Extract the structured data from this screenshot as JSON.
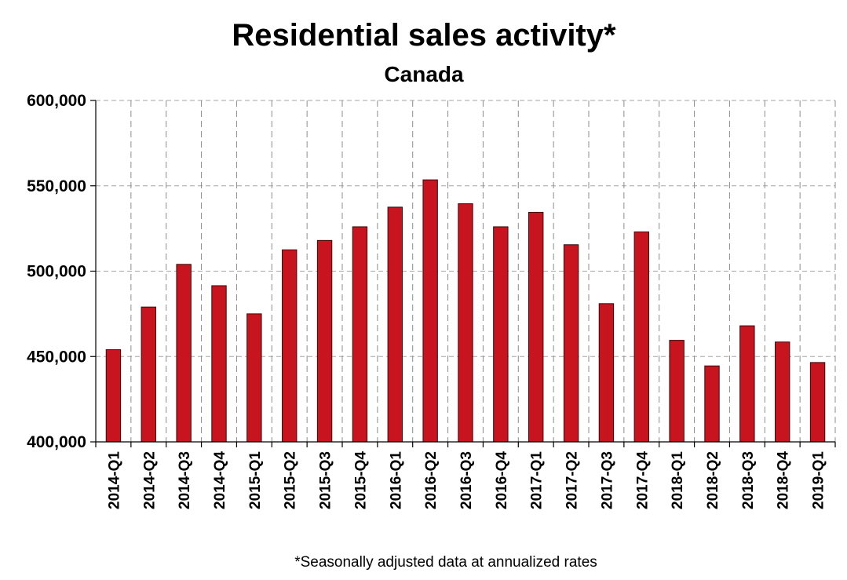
{
  "chart_data": {
    "type": "bar",
    "title": "Residential sales activity*",
    "subtitle": "Canada",
    "footnote": "*Seasonally adjusted data at annualized rates",
    "categories": [
      "2014-Q1",
      "2014-Q2",
      "2014-Q3",
      "2014-Q4",
      "2015-Q1",
      "2015-Q2",
      "2015-Q3",
      "2015-Q4",
      "2016-Q1",
      "2016-Q2",
      "2016-Q3",
      "2016-Q4",
      "2017-Q1",
      "2017-Q2",
      "2017-Q3",
      "2017-Q4",
      "2018-Q1",
      "2018-Q2",
      "2018-Q3",
      "2018-Q4",
      "2019-Q1"
    ],
    "values": [
      454000,
      479000,
      504000,
      491500,
      475000,
      512500,
      518000,
      526000,
      537500,
      553500,
      539500,
      526000,
      534500,
      515500,
      481000,
      523000,
      459500,
      444500,
      468000,
      458500,
      446500
    ],
    "ylim": [
      400000,
      600000
    ],
    "yticks": [
      400000,
      450000,
      500000,
      550000,
      600000
    ],
    "ytick_labels": [
      "400,000",
      "450,000",
      "500,000",
      "550,000",
      "600,000"
    ],
    "grid": true,
    "bar_color": "#c8141e"
  }
}
